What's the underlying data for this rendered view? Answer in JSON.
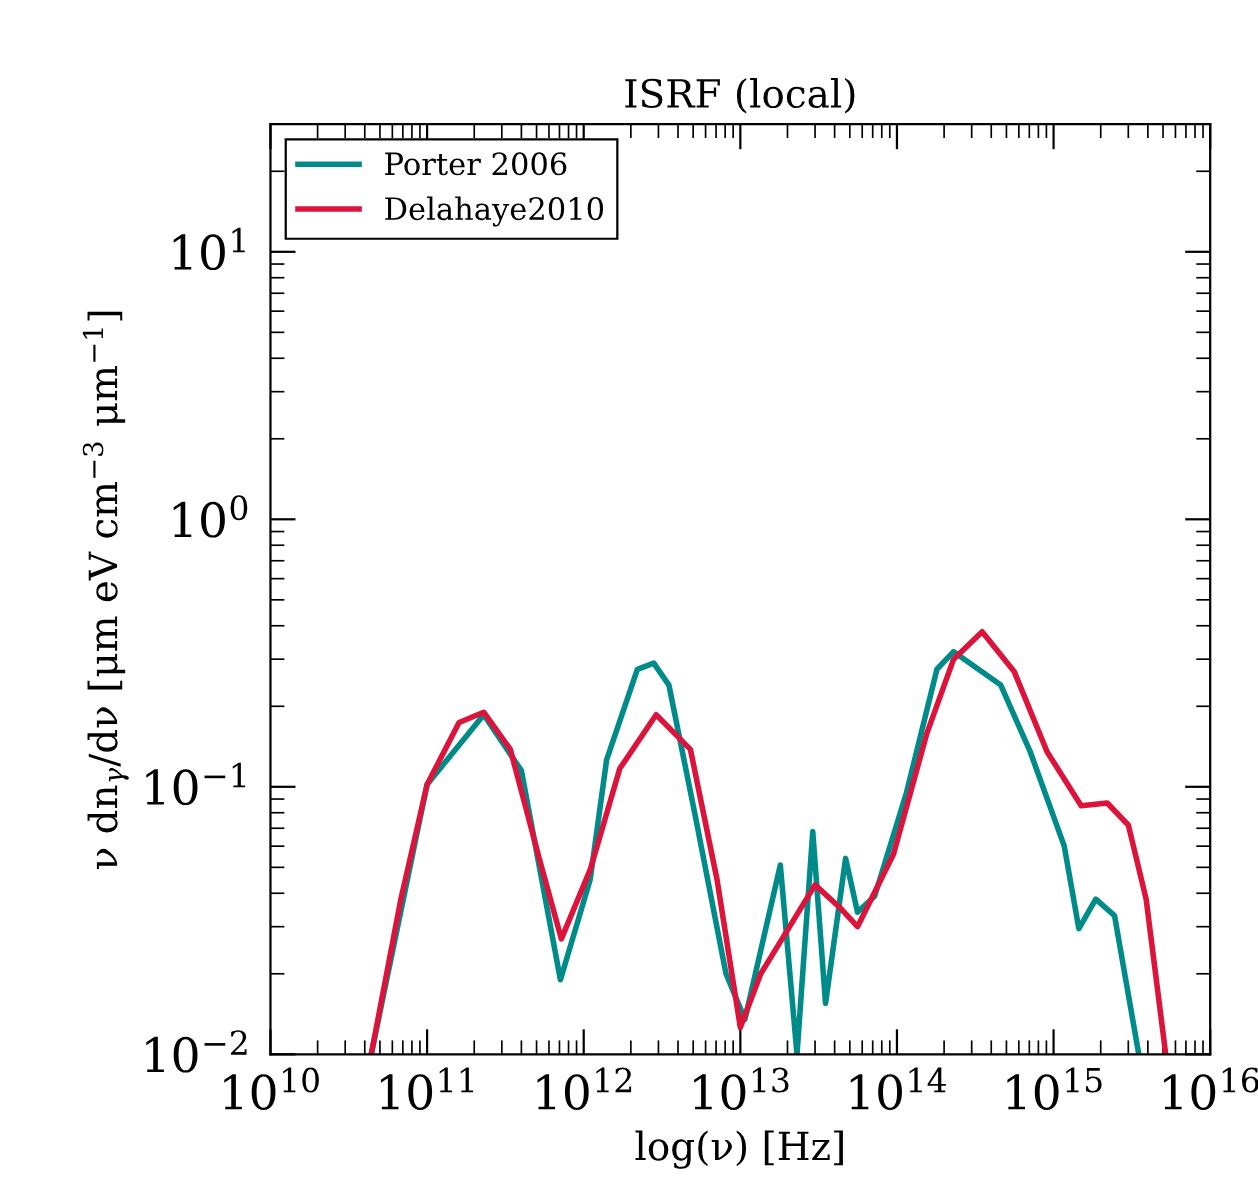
{
  "chart_data": {
    "type": "line",
    "title": "ISRF (local)",
    "xlabel": "log(ν) [Hz]",
    "ylabel": "ν dn$_{γ}$/dν [μm eV cm$^{−3}$ μm$^{−1}$]",
    "log": "xy",
    "grid": false,
    "legend": "top left",
    "marker": "none",
    "line_style": "solid",
    "xlim": [
      10000000000.0,
      1e+16
    ],
    "ylim": [
      0.01,
      30
    ],
    "xticks": [
      {
        "value": 10000000000.0,
        "label": "10$^{10}$"
      },
      {
        "value": 100000000000.0,
        "label": "10$^{11}$"
      },
      {
        "value": 1000000000000.0,
        "label": "10$^{12}$"
      },
      {
        "value": 10000000000000.0,
        "label": "10$^{13}$"
      },
      {
        "value": 100000000000000.0,
        "label": "10$^{14}$"
      },
      {
        "value": 1000000000000000.0,
        "label": "10$^{15}$"
      },
      {
        "value": 1e+16,
        "label": "10$^{16}$"
      }
    ],
    "yticks": [
      {
        "value": 0.01,
        "label": "10$^{−2}$"
      },
      {
        "value": 0.1,
        "label": "10$^{−1}$"
      },
      {
        "value": 1,
        "label": "10$^{0}$"
      },
      {
        "value": 10,
        "label": "10$^{1}$"
      }
    ],
    "series": [
      {
        "name": "Porter 2006",
        "color": "#008b8b",
        "x": [
          44000000000.0,
          100000000000.0,
          230000000000.0,
          400000000000.0,
          710000000000.0,
          1100000000000.0,
          1400000000000.0,
          2200000000000.0,
          2800000000000.0,
          3500000000000.0,
          5200000000000.0,
          8100000000000.0,
          10700000000000.0,
          18000000000000.0,
          23000000000000.0,
          29000000000000.0,
          35000000000000.0,
          47000000000000.0,
          56000000000000.0,
          72000000000000.0,
          115000000000000.0,
          180000000000000.0,
          230000000000000.0,
          460000000000000.0,
          710000000000000.0,
          1170000000000000.0,
          1450000000000000.0,
          1860000000000000.0,
          2450000000000000.0,
          3500000000000000.0
        ],
        "values": [
          0.01,
          0.102,
          0.186,
          0.115,
          0.019,
          0.045,
          0.126,
          0.275,
          0.29,
          0.24,
          0.076,
          0.02,
          0.0135,
          0.051,
          0.01,
          0.068,
          0.0155,
          0.054,
          0.034,
          0.039,
          0.095,
          0.275,
          0.32,
          0.24,
          0.135,
          0.06,
          0.0295,
          0.038,
          0.033,
          0.01
        ]
      },
      {
        "name": "Delahaye2010",
        "color": "#dc143c",
        "x": [
          44000000000.0,
          68000000000.0,
          100000000000.0,
          160000000000.0,
          230000000000.0,
          340000000000.0,
          520000000000.0,
          720000000000.0,
          1100000000000.0,
          1700000000000.0,
          2900000000000.0,
          4800000000000.0,
          7100000000000.0,
          10000000000000.0,
          13500000000000.0,
          30000000000000.0,
          44000000000000.0,
          56000000000000.0,
          95000000000000.0,
          155000000000000.0,
          230000000000000.0,
          350000000000000.0,
          560000000000000.0,
          910000000000000.0,
          1500000000000000.0,
          2200000000000000.0,
          3000000000000000.0,
          3900000000000000.0,
          5200000000000000.0
        ],
        "values": [
          0.01,
          0.038,
          0.102,
          0.174,
          0.19,
          0.138,
          0.054,
          0.027,
          0.049,
          0.117,
          0.186,
          0.138,
          0.045,
          0.0126,
          0.02,
          0.043,
          0.035,
          0.03,
          0.056,
          0.158,
          0.3,
          0.38,
          0.27,
          0.135,
          0.085,
          0.087,
          0.072,
          0.038,
          0.01
        ]
      }
    ]
  }
}
